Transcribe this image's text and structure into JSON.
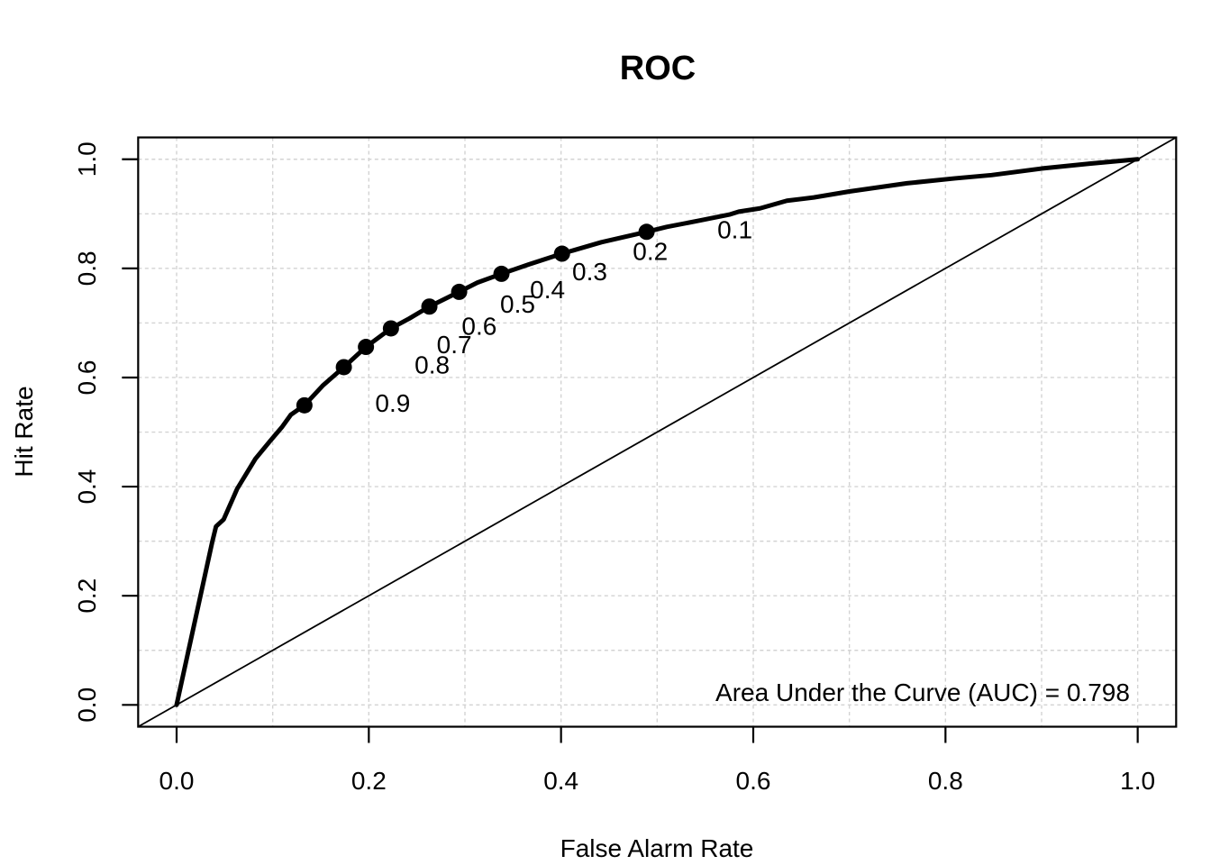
{
  "chart_data": {
    "type": "line",
    "title": "ROC",
    "xlabel": "False Alarm Rate",
    "ylabel": "Hit Rate",
    "xlim": [
      -0.04,
      1.04
    ],
    "ylim": [
      -0.04,
      1.04
    ],
    "x_ticks": {
      "values": [
        0.0,
        0.2,
        0.4,
        0.6,
        0.8,
        1.0
      ],
      "labels": [
        "0.0",
        "0.2",
        "0.4",
        "0.6",
        "0.8",
        "1.0"
      ]
    },
    "y_ticks": {
      "values": [
        0.0,
        0.2,
        0.4,
        0.6,
        0.8,
        1.0
      ],
      "labels": [
        "0.0",
        "0.2",
        "0.4",
        "0.6",
        "0.8",
        "1.0"
      ]
    },
    "grid": {
      "step": 0.1,
      "color": "#d3d3d3",
      "style": "dashed",
      "on": true
    },
    "annotation": "Area Under the Curve (AUC) = 0.798",
    "auc": 0.798,
    "colors": {
      "curve": "#000000",
      "diagonal": "#000000",
      "points": "#000000",
      "axes": "#000000",
      "grid": "#d3d3d3",
      "background": "#ffffff"
    },
    "series": [
      {
        "name": "roc-curve",
        "points": [
          [
            0.0,
            0.0
          ],
          [
            0.037,
            0.298
          ],
          [
            0.041,
            0.327
          ],
          [
            0.049,
            0.34
          ],
          [
            0.063,
            0.396
          ],
          [
            0.082,
            0.451
          ],
          [
            0.097,
            0.483
          ],
          [
            0.11,
            0.51
          ],
          [
            0.119,
            0.532
          ],
          [
            0.133,
            0.549
          ],
          [
            0.152,
            0.585
          ],
          [
            0.174,
            0.619
          ],
          [
            0.197,
            0.656
          ],
          [
            0.223,
            0.69
          ],
          [
            0.242,
            0.708
          ],
          [
            0.263,
            0.73
          ],
          [
            0.294,
            0.757
          ],
          [
            0.313,
            0.774
          ],
          [
            0.338,
            0.79
          ],
          [
            0.366,
            0.807
          ],
          [
            0.401,
            0.827
          ],
          [
            0.442,
            0.848
          ],
          [
            0.489,
            0.867
          ],
          [
            0.51,
            0.876
          ],
          [
            0.545,
            0.888
          ],
          [
            0.576,
            0.899
          ],
          [
            0.585,
            0.904
          ],
          [
            0.607,
            0.91
          ],
          [
            0.635,
            0.924
          ],
          [
            0.663,
            0.93
          ],
          [
            0.7,
            0.941
          ],
          [
            0.76,
            0.956
          ],
          [
            0.81,
            0.965
          ],
          [
            0.848,
            0.971
          ],
          [
            0.9,
            0.983
          ],
          [
            0.95,
            0.992
          ],
          [
            1.0,
            1.0
          ]
        ]
      },
      {
        "name": "chance-diagonal",
        "points": [
          [
            -0.04,
            -0.04
          ],
          [
            1.04,
            1.04
          ]
        ]
      }
    ],
    "labeled_points": [
      {
        "label": "0.1",
        "x": 0.489,
        "y": 0.867
      },
      {
        "label": "0.2",
        "x": 0.401,
        "y": 0.827
      },
      {
        "label": "0.3",
        "x": 0.338,
        "y": 0.79
      },
      {
        "label": "0.4",
        "x": 0.294,
        "y": 0.757
      },
      {
        "label": "0.5",
        "x": 0.263,
        "y": 0.73
      },
      {
        "label": "0.6",
        "x": 0.223,
        "y": 0.69
      },
      {
        "label": "0.7",
        "x": 0.197,
        "y": 0.656
      },
      {
        "label": "0.8",
        "x": 0.174,
        "y": 0.619
      },
      {
        "label": "0.9",
        "x": 0.133,
        "y": 0.549
      }
    ]
  }
}
